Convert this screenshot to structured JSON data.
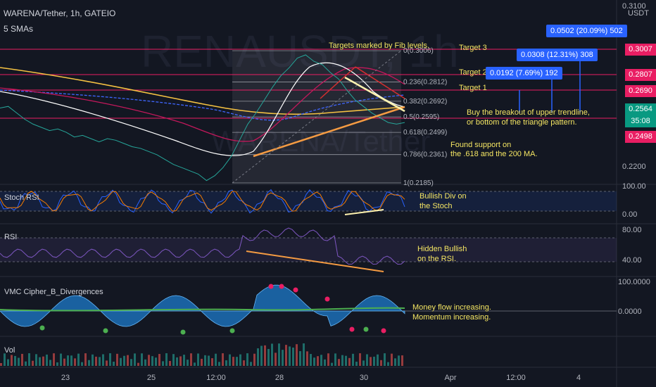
{
  "header": {
    "symbol": "WARENA/Tether, 1h, GATEIO",
    "indicator": "5 SMAs",
    "currency": "USDT"
  },
  "watermark": {
    "line1": "RENAUSDT, 1h",
    "line2": "WARENA/Tether"
  },
  "colors": {
    "bg": "#131722",
    "target_line": "#e91e63",
    "badge": "#2962ff",
    "annotation": "#f5e663"
  },
  "price_axis": {
    "ticks": [
      "0.3100",
      "0.2200"
    ]
  },
  "targets": [
    {
      "label": "Target 3",
      "price": "0.3007"
    },
    {
      "label": "Target 2",
      "price": "0.2807"
    },
    {
      "label": "Target 1",
      "price": "0.2690"
    }
  ],
  "bottom_line": {
    "price": "0.2498"
  },
  "current_price": {
    "price": "0.2564",
    "countdown": "35:08"
  },
  "badges": [
    {
      "text": "0.0502 (20.09%) 502"
    },
    {
      "text": "0.0308 (12.31%) 308"
    },
    {
      "text": "0.0192 (7.69%) 192"
    }
  ],
  "fib_levels": [
    {
      "label": "0(0.3006)"
    },
    {
      "label": "0.236(0.2812)"
    },
    {
      "label": "0.382(0.2692)"
    },
    {
      "label": "0.5(0.2595)"
    },
    {
      "label": "0.618(0.2499)"
    },
    {
      "label": "0.786(0.2361)"
    },
    {
      "label": "1(0.2185)"
    }
  ],
  "annotations": {
    "targets": "Targets marked by Fib levels.",
    "breakout_1": "Buy the breakout of upper trendline,",
    "breakout_2": "or bottom of the triangle pattern.",
    "support_1": "Found support on",
    "support_2": "the .618 and the 200 MA.",
    "stoch_1": "Bullish Div on",
    "stoch_2": "the Stoch",
    "rsi_1": "Hidden Bullish",
    "rsi_2": "on the RSI.",
    "vmc_1": "Money flow increasing.",
    "vmc_2": "Momentum increasing."
  },
  "panels": {
    "stoch": {
      "label": "Stoch RSI",
      "ticks": [
        "100.00",
        "0.00"
      ]
    },
    "rsi": {
      "label": "RSI",
      "ticks": [
        "80.00",
        "40.00"
      ]
    },
    "vmc": {
      "label": "VMC Cipher_B_Divergences",
      "ticks": [
        "100.0000",
        "0.0000"
      ]
    },
    "vol": {
      "label": "Vol"
    }
  },
  "time_axis": {
    "ticks": [
      "23",
      "25",
      "12:00",
      "28",
      "30",
      "Apr",
      "12:00",
      "4"
    ]
  },
  "chart_data": {
    "type": "line",
    "series_price": [
      0.265,
      0.266,
      0.262,
      0.258,
      0.255,
      0.253,
      0.251,
      0.252,
      0.25,
      0.247,
      0.248,
      0.246,
      0.244,
      0.246,
      0.245,
      0.243,
      0.241,
      0.24,
      0.238,
      0.236,
      0.233,
      0.23,
      0.228,
      0.226,
      0.224,
      0.22,
      0.223,
      0.228,
      0.235,
      0.245,
      0.255,
      0.262,
      0.27,
      0.278,
      0.285,
      0.29,
      0.296,
      0.298,
      0.294,
      0.292,
      0.287,
      0.283,
      0.276,
      0.27,
      0.266,
      0.262,
      0.259,
      0.256,
      0.255,
      0.256
    ]
  }
}
